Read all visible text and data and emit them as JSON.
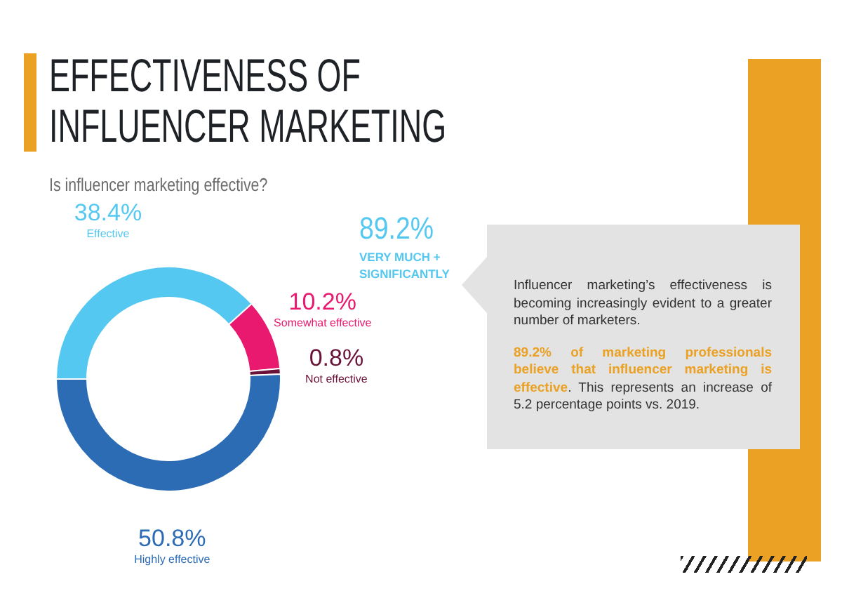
{
  "chart_data": {
    "type": "donut",
    "title": "EFFECTIVENESS OF INFLUENCER MARKETING",
    "subtitle": "Is influencer marketing effective?",
    "categories": [
      "Effective",
      "Somewhat effective",
      "Not effective",
      "Highly effective"
    ],
    "values": [
      38.4,
      10.2,
      0.8,
      50.8
    ],
    "colors": [
      "#54c8f0",
      "#e8196e",
      "#6b1238",
      "#2b6cb5"
    ],
    "value_labels": [
      "38.4%",
      "10.2%",
      "0.8%",
      "50.8%"
    ],
    "annotations": [
      "89.2%",
      "VERY MUCH + SIGNIFICANTLY",
      "Influencer marketing’s effectiveness is becoming increasingly evident to a greater number of marketers.",
      "89.2% of marketing professionals believe that influencer marketing is effective",
      ". This represents an increase of 5.2 percentage points vs. 2019."
    ]
  }
}
